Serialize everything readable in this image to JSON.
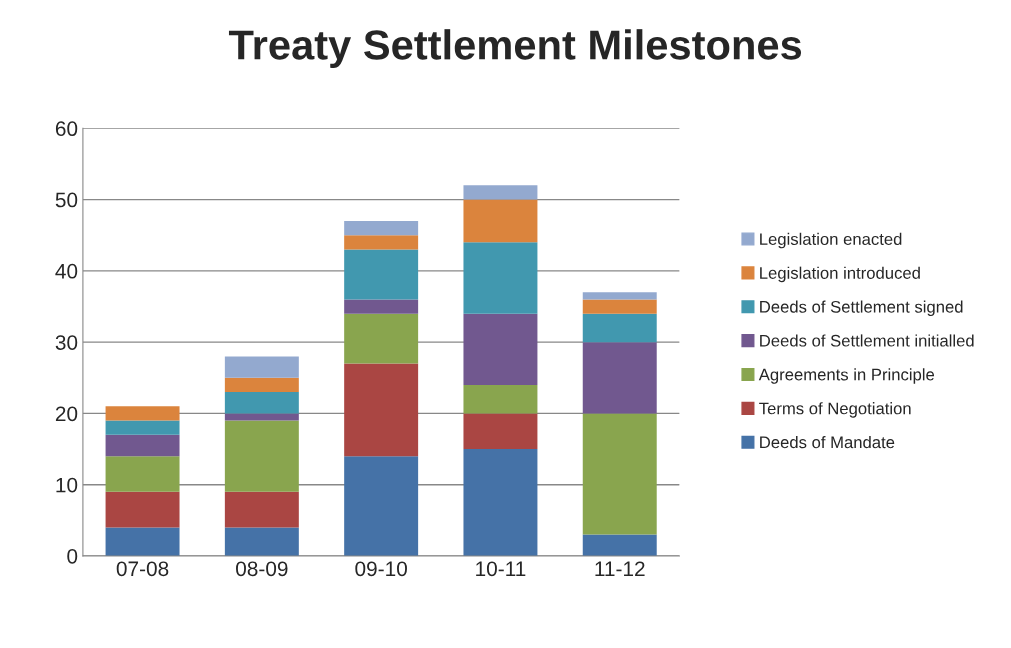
{
  "chart_data": {
    "type": "bar",
    "title": "Treaty Settlement Milestones",
    "stacked": true,
    "categories": [
      "07-08",
      "08-09",
      "09-10",
      "10-11",
      "11-12"
    ],
    "series": [
      {
        "name": "Deeds of Mandate",
        "color": "#4572a7",
        "values": [
          4,
          4,
          14,
          15,
          3
        ]
      },
      {
        "name": "Terms of Negotiation",
        "color": "#aa4643",
        "values": [
          5,
          5,
          13,
          5,
          0
        ]
      },
      {
        "name": "Agreements in Principle",
        "color": "#89a54e",
        "values": [
          5,
          10,
          7,
          4,
          17
        ]
      },
      {
        "name": "Deeds of Settlement initialled",
        "color": "#71588f",
        "values": [
          3,
          1,
          2,
          10,
          10
        ]
      },
      {
        "name": "Deeds of Settlement signed",
        "color": "#4198af",
        "values": [
          2,
          3,
          7,
          10,
          4
        ]
      },
      {
        "name": "Legislation introduced",
        "color": "#db843d",
        "values": [
          2,
          2,
          2,
          6,
          2
        ]
      },
      {
        "name": "Legislation enacted",
        "color": "#93a9cf",
        "values": [
          0,
          3,
          2,
          2,
          1
        ]
      }
    ],
    "ylim": [
      0,
      60
    ],
    "yticks": [
      0,
      10,
      20,
      30,
      40,
      50,
      60
    ],
    "grid": "y",
    "legend": "right"
  }
}
